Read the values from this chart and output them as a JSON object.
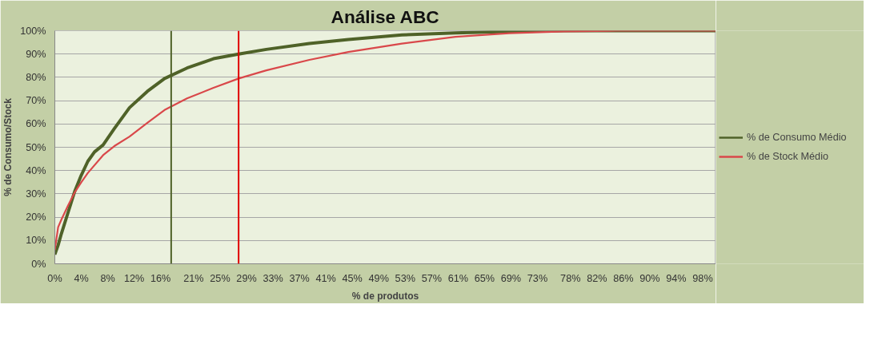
{
  "chart_data": {
    "type": "line",
    "title": "Análise ABC",
    "xlabel": "% de produtos",
    "ylabel": "% de Consumo/Stock",
    "xlim": [
      0,
      100
    ],
    "ylim": [
      0,
      100
    ],
    "xticks": [
      {
        "value": 0,
        "label": "0%"
      },
      {
        "value": 4,
        "label": "4%"
      },
      {
        "value": 8,
        "label": "8%"
      },
      {
        "value": 12,
        "label": "12%"
      },
      {
        "value": 16,
        "label": "16%"
      },
      {
        "value": 21,
        "label": "21%"
      },
      {
        "value": 25,
        "label": "25%"
      },
      {
        "value": 29,
        "label": "29%"
      },
      {
        "value": 33,
        "label": "33%"
      },
      {
        "value": 37,
        "label": "37%"
      },
      {
        "value": 41,
        "label": "41%"
      },
      {
        "value": 45,
        "label": "45%"
      },
      {
        "value": 49,
        "label": "49%"
      },
      {
        "value": 53,
        "label": "53%"
      },
      {
        "value": 57,
        "label": "57%"
      },
      {
        "value": 61,
        "label": "61%"
      },
      {
        "value": 65,
        "label": "65%"
      },
      {
        "value": 69,
        "label": "69%"
      },
      {
        "value": 73,
        "label": "73%"
      },
      {
        "value": 78,
        "label": "78%"
      },
      {
        "value": 82,
        "label": "82%"
      },
      {
        "value": 86,
        "label": "86%"
      },
      {
        "value": 90,
        "label": "90%"
      },
      {
        "value": 94,
        "label": "94%"
      },
      {
        "value": 98,
        "label": "98%"
      }
    ],
    "yticks": [
      {
        "value": 0,
        "label": "0%"
      },
      {
        "value": 10,
        "label": "10%"
      },
      {
        "value": 20,
        "label": "20%"
      },
      {
        "value": 30,
        "label": "30%"
      },
      {
        "value": 40,
        "label": "40%"
      },
      {
        "value": 50,
        "label": "50%"
      },
      {
        "value": 60,
        "label": "60%"
      },
      {
        "value": 70,
        "label": "70%"
      },
      {
        "value": 80,
        "label": "80%"
      },
      {
        "value": 90,
        "label": "90%"
      },
      {
        "value": 100,
        "label": "100%"
      }
    ],
    "grid": "y",
    "legend": "right",
    "marker": "none",
    "line_style": "solid",
    "series": [
      {
        "name": "% de Consumo Médio",
        "color": "#4f6228",
        "x": [
          0,
          0.5,
          1,
          2,
          3,
          4,
          5,
          6,
          7.3,
          9,
          11.3,
          14,
          16.6,
          20,
          24,
          27.8,
          32,
          38.5,
          44.4,
          52.5,
          60.6,
          68.7,
          77,
          85,
          100
        ],
        "values": [
          4,
          8,
          13,
          22,
          31,
          38,
          44,
          48,
          51,
          58,
          67,
          74,
          79.5,
          84,
          88,
          90,
          92,
          94.5,
          96.2,
          98.2,
          99.1,
          99.7,
          100,
          100,
          100
        ]
      },
      {
        "name": "% de Stock Médio",
        "color": "#d9484a",
        "x": [
          0,
          0.5,
          1,
          2,
          3,
          4,
          5,
          7.3,
          9,
          11.3,
          14,
          16.6,
          20,
          24,
          27.8,
          32,
          38.5,
          44.4,
          52.5,
          60.6,
          68.7,
          77,
          85,
          100
        ],
        "values": [
          6,
          15.7,
          19,
          25,
          30.6,
          35,
          39,
          46.6,
          50.5,
          54.6,
          60.5,
          66,
          71,
          75.5,
          79.5,
          83,
          87.5,
          90.9,
          94.5,
          97.4,
          98.9,
          99.7,
          100,
          100
        ]
      }
    ],
    "ref_lines": [
      {
        "axis": "x",
        "value": 17.6,
        "color": "#4f6228"
      },
      {
        "axis": "x",
        "value": 27.8,
        "color": "#e00000"
      }
    ]
  }
}
